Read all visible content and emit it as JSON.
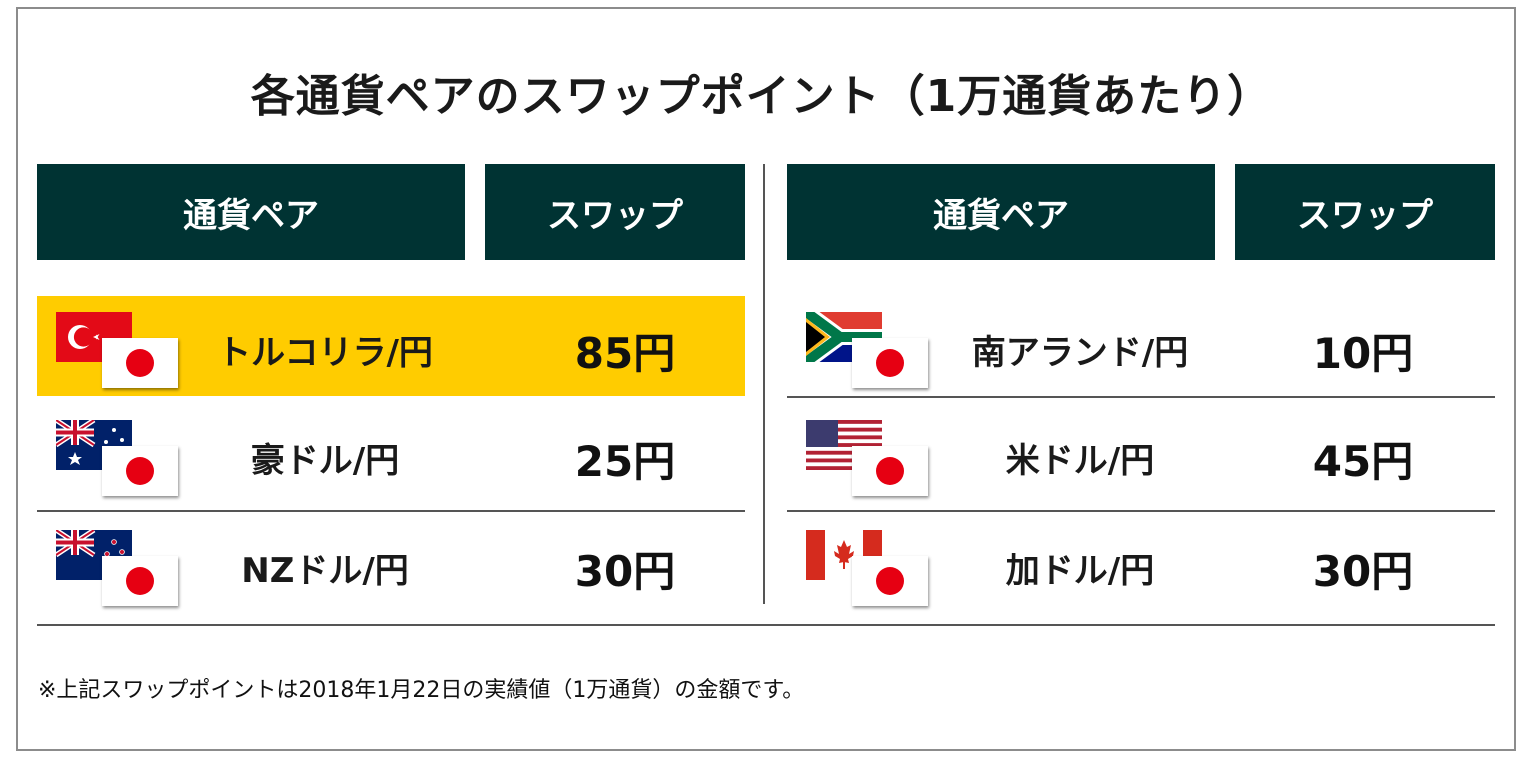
{
  "title": "各通貨ペアのスワップポイント（1万通貨あたり）",
  "headers": {
    "pair": "通貨ペア",
    "swap": "スワップ"
  },
  "left": [
    {
      "pair": "トルコリラ/円",
      "swap": "85円",
      "flag": "turkey-flag-icon",
      "highlight": true
    },
    {
      "pair": "豪ドル/円",
      "swap": "25円",
      "flag": "australia-flag-icon",
      "highlight": false
    },
    {
      "pair": "NZドル/円",
      "swap": "30円",
      "flag": "new-zealand-flag-icon",
      "highlight": false
    }
  ],
  "right": [
    {
      "pair": "南アランド/円",
      "swap": "10円",
      "flag": "south-africa-flag-icon",
      "highlight": false
    },
    {
      "pair": "米ドル/円",
      "swap": "45円",
      "flag": "usa-flag-icon",
      "highlight": false
    },
    {
      "pair": "加ドル/円",
      "swap": "30円",
      "flag": "canada-flag-icon",
      "highlight": false
    }
  ],
  "note": "※上記スワップポイントは2018年1月22日の実績値（1万通貨）の金額です。",
  "colors": {
    "header_bg": "#003333",
    "highlight_bg": "#ffcc00",
    "japan_red": "#e60012"
  }
}
